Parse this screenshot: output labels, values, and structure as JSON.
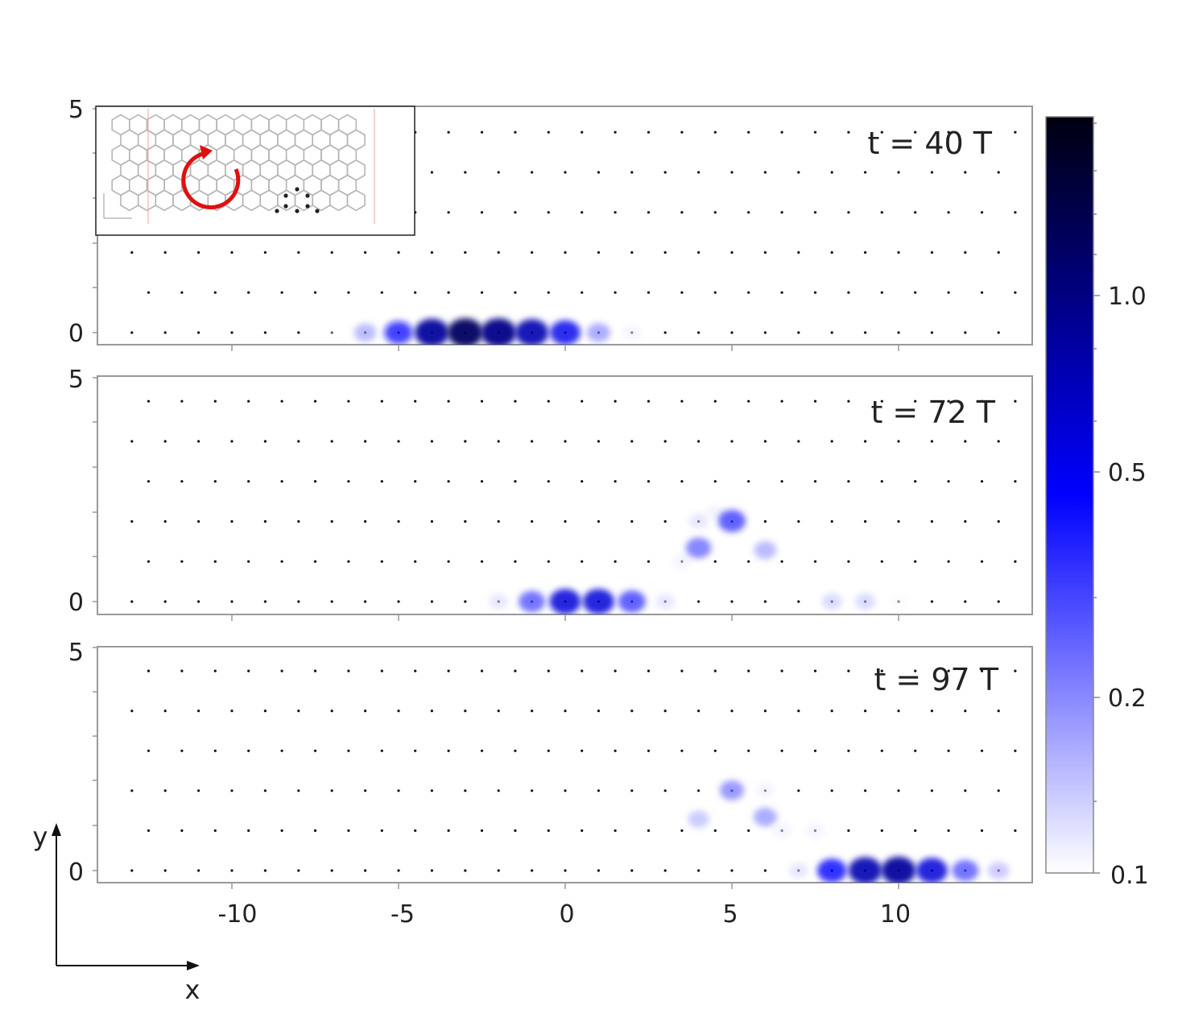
{
  "chart_data": {
    "type": "heatmap",
    "x_ticks": [
      -10,
      -5,
      0,
      5,
      10
    ],
    "y_ticks": [
      0,
      5
    ],
    "xlim": [
      -14,
      14
    ],
    "ylim": [
      -0.25,
      5
    ],
    "x_axis_label": "x",
    "y_axis_label": "y",
    "colormap": {
      "low_color": "#ffffff",
      "mid_color": "#0000ff",
      "high_color": "#000010"
    },
    "colorbar": {
      "ticks": [
        0.1,
        0.2,
        0.5,
        1.0
      ],
      "tick_labels": [
        "0.1",
        "0.2",
        "0.5",
        "1.0"
      ]
    },
    "panels": [
      {
        "time_label": "t = 40 T",
        "blobs": [
          {
            "x": -7.2,
            "y": 0,
            "v": 0.1
          },
          {
            "x": -6,
            "y": 0,
            "v": 0.35
          },
          {
            "x": -5,
            "y": 0,
            "v": 0.65
          },
          {
            "x": -4,
            "y": 0,
            "v": 0.95
          },
          {
            "x": -3,
            "y": 0,
            "v": 1.1
          },
          {
            "x": -2,
            "y": 0,
            "v": 1.0
          },
          {
            "x": -1,
            "y": 0,
            "v": 0.9
          },
          {
            "x": 0,
            "y": 0,
            "v": 0.75
          },
          {
            "x": 1,
            "y": 0,
            "v": 0.4
          },
          {
            "x": 2,
            "y": 0,
            "v": 0.15
          }
        ]
      },
      {
        "time_label": "t = 72 T",
        "blobs": [
          {
            "x": -2,
            "y": 0,
            "v": 0.2
          },
          {
            "x": -1,
            "y": 0,
            "v": 0.55
          },
          {
            "x": 0,
            "y": 0,
            "v": 0.8
          },
          {
            "x": 1,
            "y": 0,
            "v": 0.8
          },
          {
            "x": 2,
            "y": 0,
            "v": 0.6
          },
          {
            "x": 3,
            "y": 0,
            "v": 0.2
          },
          {
            "x": 3.5,
            "y": 0.9,
            "v": 0.15
          },
          {
            "x": 4,
            "y": 1.2,
            "v": 0.5
          },
          {
            "x": 4,
            "y": 1.8,
            "v": 0.2
          },
          {
            "x": 4.5,
            "y": 2.0,
            "v": 0.15
          },
          {
            "x": 5,
            "y": 1.8,
            "v": 0.6
          },
          {
            "x": 6,
            "y": 1.15,
            "v": 0.35
          },
          {
            "x": 8,
            "y": 0,
            "v": 0.25
          },
          {
            "x": 9,
            "y": 0,
            "v": 0.25
          },
          {
            "x": 10,
            "y": 0,
            "v": 0.12
          }
        ]
      },
      {
        "time_label": "t = 97 T",
        "blobs": [
          {
            "x": 4,
            "y": 1.15,
            "v": 0.3
          },
          {
            "x": 5,
            "y": 1.8,
            "v": 0.45
          },
          {
            "x": 6,
            "y": 1.8,
            "v": 0.15
          },
          {
            "x": 6,
            "y": 1.2,
            "v": 0.4
          },
          {
            "x": 6.5,
            "y": 0.9,
            "v": 0.15
          },
          {
            "x": 7.5,
            "y": 0.9,
            "v": 0.15
          },
          {
            "x": 7,
            "y": 0,
            "v": 0.2
          },
          {
            "x": 8,
            "y": 0,
            "v": 0.7
          },
          {
            "x": 9,
            "y": 0,
            "v": 0.9
          },
          {
            "x": 10,
            "y": 0,
            "v": 0.95
          },
          {
            "x": 11,
            "y": 0,
            "v": 0.8
          },
          {
            "x": 12,
            "y": 0,
            "v": 0.55
          },
          {
            "x": 13,
            "y": 0,
            "v": 0.3
          }
        ]
      }
    ]
  }
}
